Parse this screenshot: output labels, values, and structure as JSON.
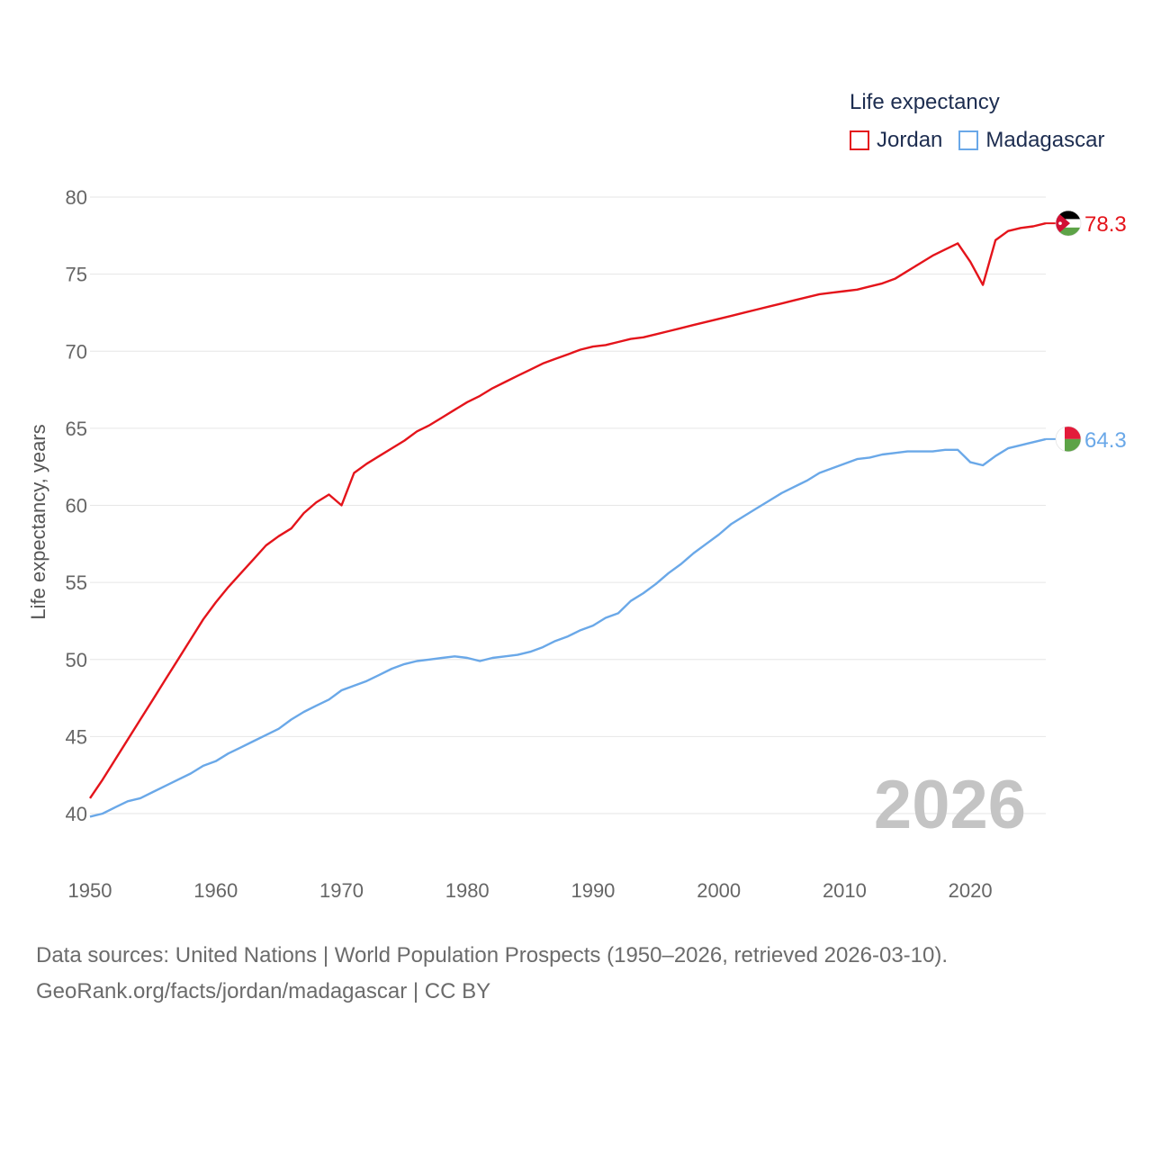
{
  "chart_data": {
    "type": "line",
    "title": "",
    "legend_title": "Life expectancy",
    "ylabel": "Life expectancy, years",
    "xlabel": "",
    "xlim": [
      1950,
      2026
    ],
    "ylim": [
      38,
      81
    ],
    "y_ticks": [
      40,
      45,
      50,
      55,
      60,
      65,
      70,
      75,
      80
    ],
    "x_ticks": [
      1950,
      1960,
      1970,
      1980,
      1990,
      2000,
      2010,
      2020
    ],
    "year_label": "2026",
    "grid": true,
    "legend_position": "top-right",
    "series": [
      {
        "name": "Jordan",
        "color": "#e4141b",
        "end_label": "78.3",
        "flag": "jordan-flag",
        "x": [
          1950,
          1951,
          1952,
          1953,
          1954,
          1955,
          1956,
          1957,
          1958,
          1959,
          1960,
          1961,
          1962,
          1963,
          1964,
          1965,
          1966,
          1967,
          1968,
          1969,
          1970,
          1971,
          1972,
          1973,
          1974,
          1975,
          1976,
          1977,
          1978,
          1979,
          1980,
          1981,
          1982,
          1983,
          1984,
          1985,
          1986,
          1987,
          1988,
          1989,
          1990,
          1991,
          1992,
          1993,
          1994,
          1995,
          1996,
          1997,
          1998,
          1999,
          2000,
          2001,
          2002,
          2003,
          2004,
          2005,
          2006,
          2007,
          2008,
          2009,
          2010,
          2011,
          2012,
          2013,
          2014,
          2015,
          2016,
          2017,
          2018,
          2019,
          2020,
          2021,
          2022,
          2023,
          2024,
          2025,
          2026
        ],
        "values": [
          41.0,
          42.2,
          43.5,
          44.8,
          46.1,
          47.4,
          48.7,
          50.0,
          51.3,
          52.6,
          53.7,
          54.7,
          55.6,
          56.5,
          57.4,
          58.0,
          58.5,
          59.5,
          60.2,
          60.7,
          60.0,
          62.1,
          62.7,
          63.2,
          63.7,
          64.2,
          64.8,
          65.2,
          65.7,
          66.2,
          66.7,
          67.1,
          67.6,
          68.0,
          68.4,
          68.8,
          69.2,
          69.5,
          69.8,
          70.1,
          70.3,
          70.4,
          70.6,
          70.8,
          70.9,
          71.1,
          71.3,
          71.5,
          71.7,
          71.9,
          72.1,
          72.3,
          72.5,
          72.7,
          72.9,
          73.1,
          73.3,
          73.5,
          73.7,
          73.8,
          73.9,
          74.0,
          74.2,
          74.4,
          74.7,
          75.2,
          75.7,
          76.2,
          76.6,
          77.0,
          75.8,
          74.3,
          77.2,
          77.8,
          78.0,
          78.1,
          78.3
        ]
      },
      {
        "name": "Madagascar",
        "color": "#6aa8e8",
        "end_label": "64.3",
        "flag": "madagascar-flag",
        "x": [
          1950,
          1951,
          1952,
          1953,
          1954,
          1955,
          1956,
          1957,
          1958,
          1959,
          1960,
          1961,
          1962,
          1963,
          1964,
          1965,
          1966,
          1967,
          1968,
          1969,
          1970,
          1971,
          1972,
          1973,
          1974,
          1975,
          1976,
          1977,
          1978,
          1979,
          1980,
          1981,
          1982,
          1983,
          1984,
          1985,
          1986,
          1987,
          1988,
          1989,
          1990,
          1991,
          1992,
          1993,
          1994,
          1995,
          1996,
          1997,
          1998,
          1999,
          2000,
          2001,
          2002,
          2003,
          2004,
          2005,
          2006,
          2007,
          2008,
          2009,
          2010,
          2011,
          2012,
          2013,
          2014,
          2015,
          2016,
          2017,
          2018,
          2019,
          2020,
          2021,
          2022,
          2023,
          2024,
          2025,
          2026
        ],
        "values": [
          39.8,
          40.0,
          40.4,
          40.8,
          41.0,
          41.4,
          41.8,
          42.2,
          42.6,
          43.1,
          43.4,
          43.9,
          44.3,
          44.7,
          45.1,
          45.5,
          46.1,
          46.6,
          47.0,
          47.4,
          48.0,
          48.3,
          48.6,
          49.0,
          49.4,
          49.7,
          49.9,
          50.0,
          50.1,
          50.2,
          50.1,
          49.9,
          50.1,
          50.2,
          50.3,
          50.5,
          50.8,
          51.2,
          51.5,
          51.9,
          52.2,
          52.7,
          53.0,
          53.8,
          54.3,
          54.9,
          55.6,
          56.2,
          56.9,
          57.5,
          58.1,
          58.8,
          59.3,
          59.8,
          60.3,
          60.8,
          61.2,
          61.6,
          62.1,
          62.4,
          62.7,
          63.0,
          63.1,
          63.3,
          63.4,
          63.5,
          63.5,
          63.5,
          63.6,
          63.6,
          62.8,
          62.6,
          63.2,
          63.7,
          63.9,
          64.1,
          64.3
        ]
      }
    ]
  },
  "footer": {
    "source_line": "Data sources: United Nations | World Population Prospects (1950–2026, retrieved 2026-03-10).",
    "url_line": "GeoRank.org/facts/jordan/madagascar | CC BY"
  }
}
